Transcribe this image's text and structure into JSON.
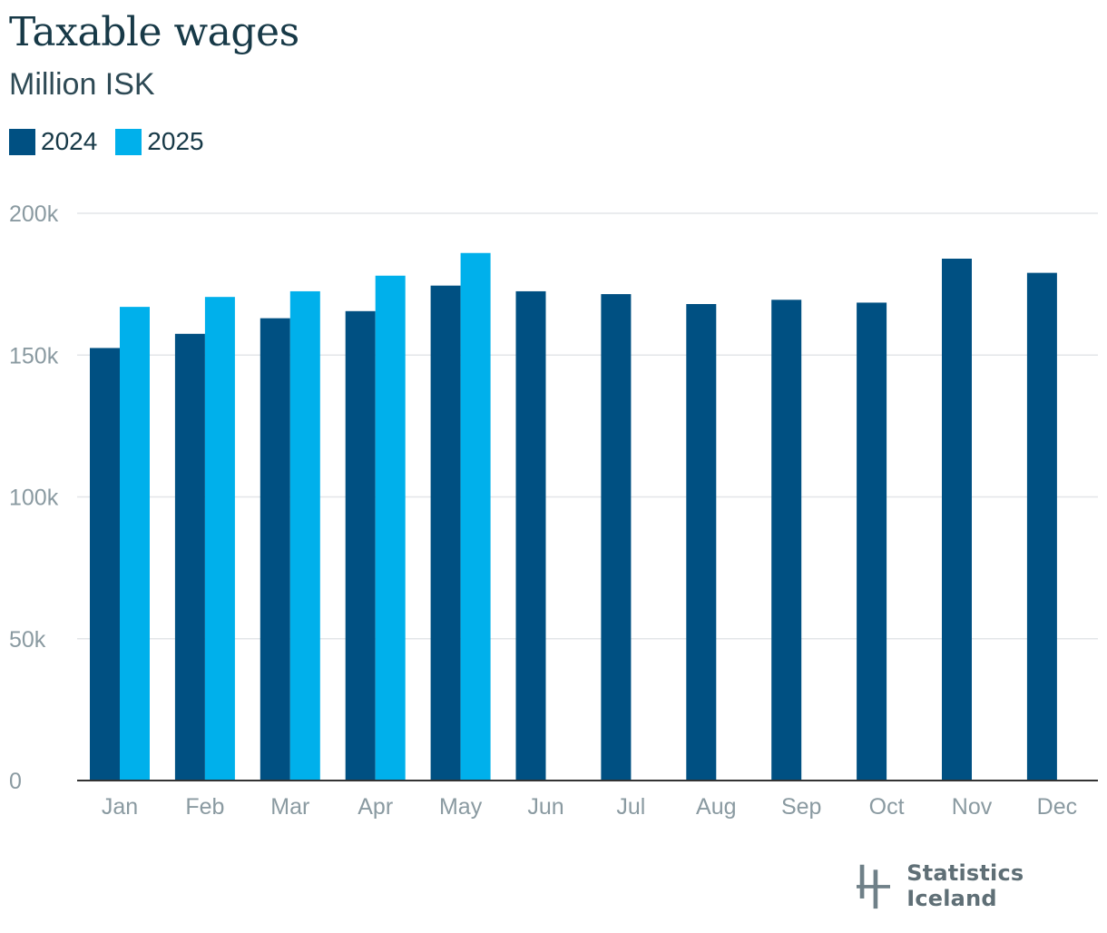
{
  "chart_data": {
    "type": "bar",
    "title": "Taxable wages",
    "subtitle": "Million ISK",
    "categories": [
      "Jan",
      "Feb",
      "Mar",
      "Apr",
      "May",
      "Jun",
      "Jul",
      "Aug",
      "Sep",
      "Oct",
      "Nov",
      "Dec"
    ],
    "series": [
      {
        "name": "2024",
        "color": "#005082",
        "values": [
          152500,
          157500,
          163000,
          165500,
          174500,
          172500,
          171500,
          168000,
          169500,
          168500,
          184000,
          179000
        ]
      },
      {
        "name": "2025",
        "color": "#00b0eb",
        "values": [
          167000,
          170500,
          172500,
          178000,
          186000,
          null,
          null,
          null,
          null,
          null,
          null,
          null
        ]
      }
    ],
    "yticks": [
      "0",
      "50k",
      "100k",
      "150k",
      "200k"
    ],
    "ytick_values": [
      0,
      50000,
      100000,
      150000,
      200000
    ],
    "ylim": [
      0,
      200000
    ],
    "grid": true,
    "legend": "top-left"
  },
  "brand": {
    "logo_text": "Statistics Iceland",
    "logo_icon": "statistics-iceland-logo-icon"
  }
}
